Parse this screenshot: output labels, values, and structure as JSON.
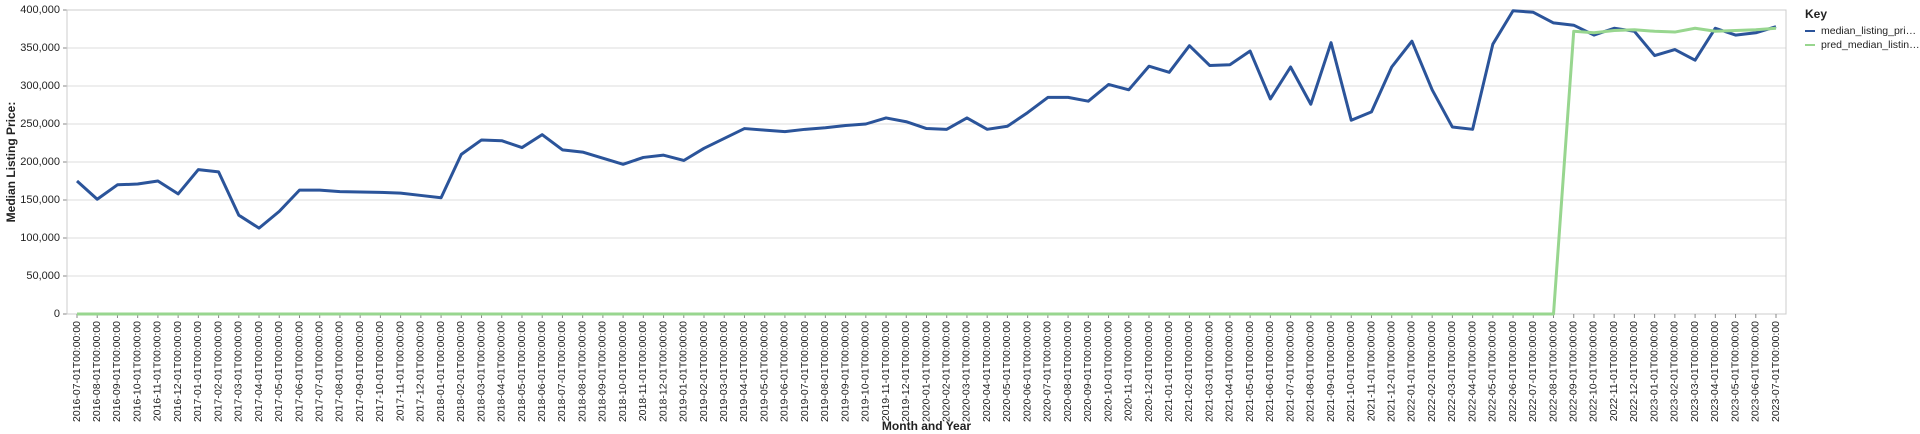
{
  "chart_data": {
    "type": "line",
    "x_label": "Month and Year",
    "y_label": "Median Listing Price:",
    "legend_title": "Key",
    "legend_position": "right",
    "grid": true,
    "categories": [
      "2016-07-01T00:00:00",
      "2016-08-01T00:00:00",
      "2016-09-01T00:00:00",
      "2016-10-01T00:00:00",
      "2016-11-01T00:00:00",
      "2016-12-01T00:00:00",
      "2017-01-01T00:00:00",
      "2017-02-01T00:00:00",
      "2017-03-01T00:00:00",
      "2017-04-01T00:00:00",
      "2017-05-01T00:00:00",
      "2017-06-01T00:00:00",
      "2017-07-01T00:00:00",
      "2017-08-01T00:00:00",
      "2017-09-01T00:00:00",
      "2017-10-01T00:00:00",
      "2017-11-01T00:00:00",
      "2017-12-01T00:00:00",
      "2018-01-01T00:00:00",
      "2018-02-01T00:00:00",
      "2018-03-01T00:00:00",
      "2018-04-01T00:00:00",
      "2018-05-01T00:00:00",
      "2018-06-01T00:00:00",
      "2018-07-01T00:00:00",
      "2018-08-01T00:00:00",
      "2018-09-01T00:00:00",
      "2018-10-01T00:00:00",
      "2018-11-01T00:00:00",
      "2018-12-01T00:00:00",
      "2019-01-01T00:00:00",
      "2019-02-01T00:00:00",
      "2019-03-01T00:00:00",
      "2019-04-01T00:00:00",
      "2019-05-01T00:00:00",
      "2019-06-01T00:00:00",
      "2019-07-01T00:00:00",
      "2019-08-01T00:00:00",
      "2019-09-01T00:00:00",
      "2019-10-01T00:00:00",
      "2019-11-01T00:00:00",
      "2019-12-01T00:00:00",
      "2020-01-01T00:00:00",
      "2020-02-01T00:00:00",
      "2020-03-01T00:00:00",
      "2020-04-01T00:00:00",
      "2020-05-01T00:00:00",
      "2020-06-01T00:00:00",
      "2020-07-01T00:00:00",
      "2020-08-01T00:00:00",
      "2020-09-01T00:00:00",
      "2020-10-01T00:00:00",
      "2020-11-01T00:00:00",
      "2020-12-01T00:00:00",
      "2021-01-01T00:00:00",
      "2021-02-01T00:00:00",
      "2021-03-01T00:00:00",
      "2021-04-01T00:00:00",
      "2021-05-01T00:00:00",
      "2021-06-01T00:00:00",
      "2021-07-01T00:00:00",
      "2021-08-01T00:00:00",
      "2021-09-01T00:00:00",
      "2021-10-01T00:00:00",
      "2021-11-01T00:00:00",
      "2021-12-01T00:00:00",
      "2022-01-01T00:00:00",
      "2022-02-01T00:00:00",
      "2022-03-01T00:00:00",
      "2022-04-01T00:00:00",
      "2022-05-01T00:00:00",
      "2022-06-01T00:00:00",
      "2022-07-01T00:00:00",
      "2022-08-01T00:00:00",
      "2022-09-01T00:00:00",
      "2022-10-01T00:00:00",
      "2022-11-01T00:00:00",
      "2022-12-01T00:00:00",
      "2023-01-01T00:00:00",
      "2023-02-01T00:00:00",
      "2023-03-01T00:00:00",
      "2023-04-01T00:00:00",
      "2023-05-01T00:00:00",
      "2023-06-01T00:00:00",
      "2023-07-01T00:00:00"
    ],
    "series": [
      {
        "name": "median_listing_pri…",
        "color": "#2b549a",
        "values": [
          175000,
          151000,
          170000,
          171000,
          175000,
          158000,
          190000,
          187000,
          130000,
          113000,
          135000,
          163000,
          163000,
          161000,
          160500,
          160000,
          159000,
          156000,
          153000,
          210000,
          229000,
          228000,
          219000,
          236000,
          216000,
          213000,
          205000,
          197000,
          206000,
          209000,
          202000,
          218000,
          231000,
          244000,
          242000,
          240000,
          243000,
          245000,
          248000,
          250000,
          258000,
          253000,
          244000,
          243000,
          258000,
          243000,
          247000,
          265000,
          285000,
          285000,
          280000,
          302000,
          295000,
          326000,
          318000,
          353000,
          327000,
          328000,
          346000,
          283000,
          325000,
          276000,
          357000,
          255000,
          266000,
          325000,
          359000,
          295000,
          246000,
          243000,
          355000,
          399000,
          397000,
          383000,
          380000,
          367000,
          376000,
          372000,
          340000,
          348000,
          334000,
          376000,
          367000,
          370000,
          378000
        ]
      },
      {
        "name": "pred_median_listin…",
        "color": "#98d68f",
        "values": [
          0,
          0,
          0,
          0,
          0,
          0,
          0,
          0,
          0,
          0,
          0,
          0,
          0,
          0,
          0,
          0,
          0,
          0,
          0,
          0,
          0,
          0,
          0,
          0,
          0,
          0,
          0,
          0,
          0,
          0,
          0,
          0,
          0,
          0,
          0,
          0,
          0,
          0,
          0,
          0,
          0,
          0,
          0,
          0,
          0,
          0,
          0,
          0,
          0,
          0,
          0,
          0,
          0,
          0,
          0,
          0,
          0,
          0,
          0,
          0,
          0,
          0,
          0,
          0,
          0,
          0,
          0,
          0,
          0,
          0,
          0,
          0,
          0,
          0,
          372000,
          370000,
          373000,
          374000,
          372000,
          371000,
          376000,
          372000,
          373000,
          374000,
          376000
        ]
      }
    ],
    "ylim": [
      0,
      400000
    ],
    "yticks": [
      {
        "value": 0,
        "label": "0"
      },
      {
        "value": 50000,
        "label": "50,000"
      },
      {
        "value": 100000,
        "label": "100,000"
      },
      {
        "value": 150000,
        "label": "150,000"
      },
      {
        "value": 200000,
        "label": "200,000"
      },
      {
        "value": 250000,
        "label": "250,000"
      },
      {
        "value": 300000,
        "label": "300,000"
      },
      {
        "value": 350000,
        "label": "350,000"
      },
      {
        "value": 400000,
        "label": "400,000"
      }
    ]
  }
}
